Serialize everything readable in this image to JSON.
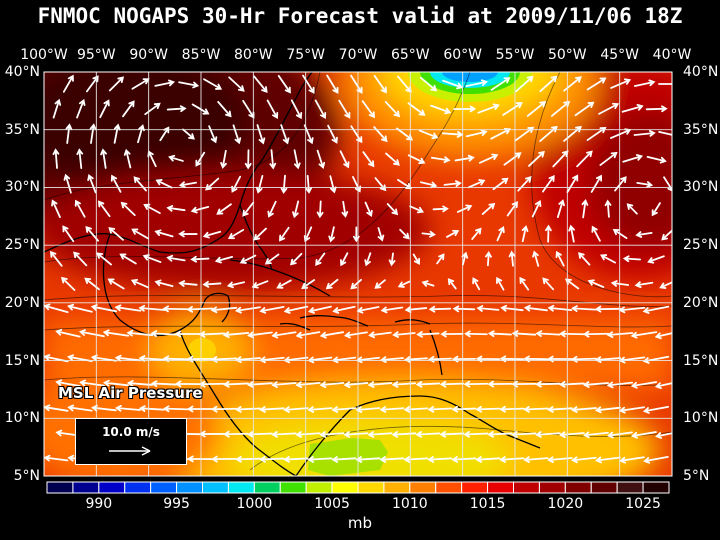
{
  "title": "FNMOC NOGAPS 30-Hr Forecast valid at 2009/11/06 18Z",
  "longitude_labels": [
    "100°W",
    "95°W",
    "90°W",
    "85°W",
    "80°W",
    "75°W",
    "70°W",
    "65°W",
    "60°W",
    "55°W",
    "50°W",
    "45°W",
    "40°W"
  ],
  "latitude_labels": [
    "40°N",
    "35°N",
    "30°N",
    "25°N",
    "20°N",
    "15°N",
    "10°N",
    "5°N"
  ],
  "field_label": "MSL Air Pressure",
  "vector_scale_label": "10.0 m/s",
  "colorbar": {
    "ticks": [
      "990",
      "995",
      "1000",
      "1005",
      "1010",
      "1015",
      "1020",
      "1025"
    ],
    "unit": "mb",
    "colors": [
      "#000050",
      "#000090",
      "#0000c8",
      "#0030f0",
      "#0060ff",
      "#0090ff",
      "#00c0ff",
      "#00e8f0",
      "#00d060",
      "#40e000",
      "#c0f000",
      "#ffff00",
      "#ffd800",
      "#ffb000",
      "#ff8000",
      "#ff5000",
      "#ff2000",
      "#e80000",
      "#c00000",
      "#a00000",
      "#800000",
      "#600000",
      "#401010",
      "#200000"
    ]
  },
  "map_extent": {
    "lon_min": -100,
    "lon_max": -40,
    "lat_min": 5,
    "lat_max": 40
  }
}
